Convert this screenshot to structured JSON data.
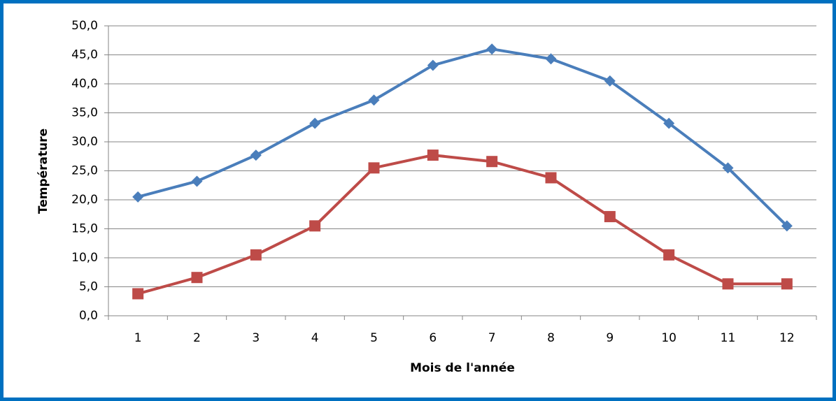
{
  "chart_data": {
    "type": "line",
    "xlabel": "Mois de l'année",
    "ylabel": "Température",
    "categories": [
      "1",
      "2",
      "3",
      "4",
      "5",
      "6",
      "7",
      "8",
      "9",
      "10",
      "11",
      "12"
    ],
    "series": [
      {
        "color": "#4a7ebb",
        "marker": "diamond",
        "values": [
          20.5,
          23.2,
          27.7,
          33.2,
          37.2,
          43.2,
          46.0,
          44.3,
          40.5,
          33.2,
          25.5,
          15.5
        ]
      },
      {
        "color": "#be4b48",
        "marker": "square",
        "values": [
          3.8,
          6.6,
          10.5,
          15.5,
          25.5,
          27.7,
          26.6,
          23.8,
          17.1,
          10.5,
          5.5,
          5.5
        ]
      }
    ],
    "ylim": [
      0,
      50
    ],
    "yticks": [
      {
        "value": 0,
        "label": "0,0"
      },
      {
        "value": 5,
        "label": "5,0"
      },
      {
        "value": 10,
        "label": "10,0"
      },
      {
        "value": 15,
        "label": "15,0"
      },
      {
        "value": 20,
        "label": "20,0"
      },
      {
        "value": 25,
        "label": "25,0"
      },
      {
        "value": 30,
        "label": "30,0"
      },
      {
        "value": 35,
        "label": "35,0"
      },
      {
        "value": 40,
        "label": "40,0"
      },
      {
        "value": 45,
        "label": "45,0"
      },
      {
        "value": 50,
        "label": "50,0"
      }
    ],
    "grid": true
  }
}
